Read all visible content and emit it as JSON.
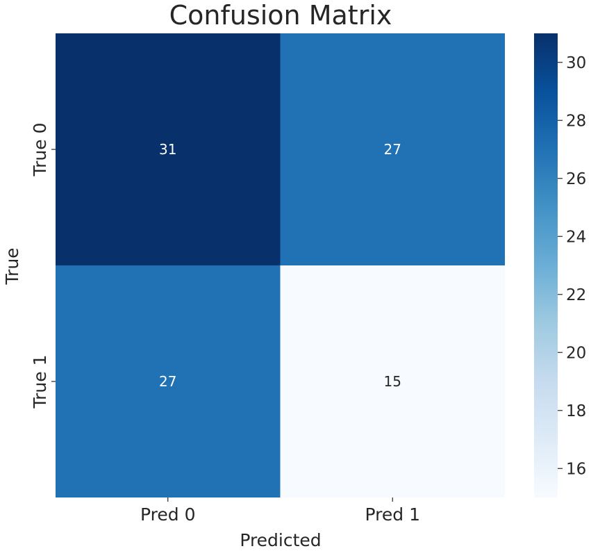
{
  "chart_data": {
    "type": "heatmap",
    "title": "Confusion Matrix",
    "xlabel": "Predicted",
    "ylabel": "True",
    "x_categories": [
      "Pred 0",
      "Pred 1"
    ],
    "y_categories": [
      "True 0",
      "True 1"
    ],
    "values": [
      [
        31,
        27
      ],
      [
        27,
        15
      ]
    ],
    "colormap": "Blues",
    "colorbar": {
      "range": [
        15,
        31
      ],
      "ticks": [
        16,
        18,
        20,
        22,
        24,
        26,
        28,
        30
      ],
      "tick_labels": [
        "16",
        "18",
        "20",
        "22",
        "24",
        "26",
        "28",
        "30"
      ]
    },
    "cell_labels": [
      [
        "31",
        "27"
      ],
      [
        "27",
        "15"
      ]
    ]
  }
}
